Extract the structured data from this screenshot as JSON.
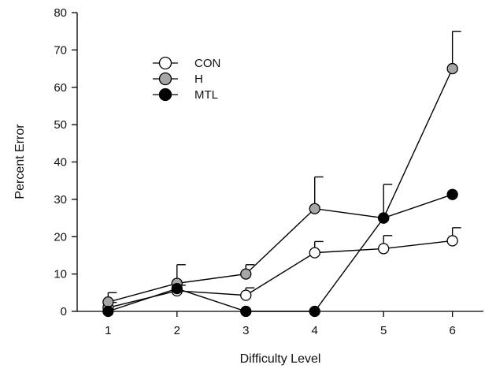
{
  "chart_data": {
    "type": "line",
    "title": "",
    "xlabel": "Difficulty Level",
    "ylabel": "Percent Error",
    "x": [
      1,
      2,
      3,
      4,
      5,
      6
    ],
    "xlim": [
      0.55,
      6.45
    ],
    "ylim": [
      0,
      80
    ],
    "yticks": [
      0,
      10,
      20,
      30,
      40,
      50,
      60,
      70,
      80
    ],
    "xticks": [
      "1",
      "2",
      "3",
      "4",
      "5",
      "6"
    ],
    "grid": false,
    "legend_position": "upper-left",
    "series": [
      {
        "name": "CON",
        "marker": "circle-open",
        "fill": "#ffffff",
        "stroke": "#000000",
        "values": [
          1.0,
          5.5,
          4.3,
          15.7,
          16.8,
          18.9
        ],
        "error_upper": [
          1.4,
          1.5,
          2.0,
          3.0,
          3.5,
          3.5
        ]
      },
      {
        "name": "H",
        "marker": "circle-gray",
        "fill": "#a6a6a6",
        "stroke": "#000000",
        "values": [
          2.5,
          7.5,
          10.0,
          27.5,
          25.0,
          65.0
        ],
        "error_upper": [
          2.5,
          5.0,
          2.5,
          8.5,
          9.0,
          10.0
        ]
      },
      {
        "name": "MTL",
        "marker": "circle-filled",
        "fill": "#000000",
        "stroke": "#000000",
        "values": [
          0.0,
          6.1,
          0.0,
          0.0,
          25.0,
          31.3
        ],
        "error_upper": [
          0,
          0,
          0,
          0,
          0,
          0
        ]
      }
    ]
  }
}
